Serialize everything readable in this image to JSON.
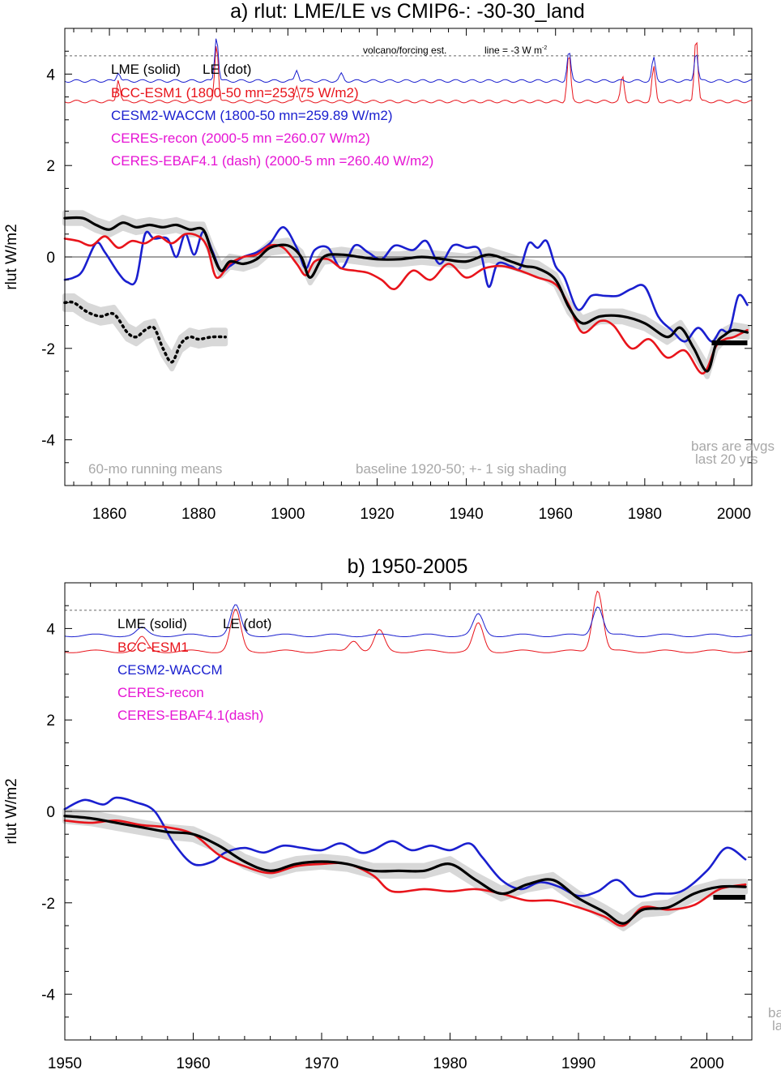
{
  "chart_data": [
    {
      "type": "line",
      "title": "a) rlut: LME/LE vs CMIP6-: -30-30_land",
      "ylabel": "rlut W/m2",
      "xlabel": "",
      "xlim": [
        1850,
        2004
      ],
      "ylim": [
        -5,
        5
      ],
      "xticks": [
        1860,
        1880,
        1900,
        1920,
        1940,
        1960,
        1980,
        2000
      ],
      "yticks": [
        -4,
        -2,
        0,
        2,
        4
      ],
      "grid": false,
      "legend_position": "top-left",
      "legend": [
        {
          "label": "LME (solid)",
          "color": "#000000"
        },
        {
          "label": "LE (dot)",
          "color": "#000000"
        },
        {
          "label": "BCC-ESM1 (1800-50 mn=253.75 W/m2)",
          "color": "#e8141b"
        },
        {
          "label": "CESM2-WACCM (1800-50 mn=259.89 W/m2)",
          "color": "#1a1fcf"
        },
        {
          "label": "CERES-recon (2000-5 mn =260.07 W/m2)",
          "color": "#e614d4"
        },
        {
          "label": "CERES-EBAF4.1 (dash) (2000-5 mn =260.40 W/m2)",
          "color": "#e614d4"
        }
      ],
      "annotations": {
        "volcano_label": "volcano/forcing est.",
        "line_label": "line = -3 W m",
        "line_label_sup": "-2",
        "running_means": "60-mo running means",
        "baseline": "baseline 1920-50; +- 1 sig shading",
        "bars_note_1": "bars are avgs",
        "bars_note_2": "last 20 yrs"
      },
      "reference_line_y": 4.4,
      "forcing_baseline": {
        "cesm2": 3.85,
        "bcc": 3.4
      },
      "volcano_peaks_cesm2": [
        [
          1862,
          4.05
        ],
        [
          1884,
          4.85
        ],
        [
          1902,
          4.1
        ],
        [
          1912,
          4.0
        ],
        [
          1963,
          4.5
        ],
        [
          1982,
          4.35
        ],
        [
          1991.5,
          4.5
        ]
      ],
      "volcano_peaks_bcc": [
        [
          1862,
          3.9
        ],
        [
          1884,
          4.7
        ],
        [
          1902,
          3.75
        ],
        [
          1963,
          4.45
        ],
        [
          1975,
          3.95
        ],
        [
          1982,
          4.15
        ],
        [
          1991.5,
          4.85
        ]
      ],
      "bar": {
        "x": [
          1995,
          2003
        ],
        "y": -1.88,
        "color": "#000000"
      },
      "series": [
        {
          "name": "LME (solid)",
          "color": "#000000",
          "style": "solid",
          "x": [
            1850,
            1854,
            1857,
            1860,
            1863,
            1866,
            1869,
            1872,
            1875,
            1878,
            1881,
            1883,
            1885,
            1887,
            1890,
            1893,
            1896,
            1900,
            1903,
            1905,
            1908,
            1912,
            1916,
            1920,
            1925,
            1930,
            1935,
            1940,
            1945,
            1950,
            1953,
            1956,
            1960,
            1963,
            1966,
            1970,
            1975,
            1980,
            1985,
            1988,
            1991,
            1994,
            1996,
            1998,
            2000,
            2003
          ],
          "y": [
            0.85,
            0.85,
            0.7,
            0.6,
            0.75,
            0.65,
            0.7,
            0.65,
            0.7,
            0.6,
            0.6,
            0.1,
            -0.3,
            -0.1,
            -0.15,
            -0.05,
            0.2,
            0.25,
            0.0,
            -0.45,
            0.0,
            0.05,
            0.0,
            -0.05,
            -0.05,
            0.0,
            -0.05,
            -0.1,
            0.05,
            -0.1,
            -0.2,
            -0.25,
            -0.5,
            -1.1,
            -1.45,
            -1.3,
            -1.3,
            -1.45,
            -1.75,
            -1.55,
            -2.0,
            -2.5,
            -1.9,
            -1.7,
            -1.6,
            -1.65
          ],
          "band": 0.12
        },
        {
          "name": "LE (dot)",
          "color": "#000000",
          "style": "dotted",
          "x": [
            1850,
            1852,
            1855,
            1858,
            1861,
            1864,
            1866,
            1868,
            1870,
            1872,
            1874,
            1876,
            1878,
            1880,
            1883,
            1886
          ],
          "y": [
            -1.0,
            -1.0,
            -1.2,
            -1.3,
            -1.25,
            -1.65,
            -1.75,
            -1.6,
            -1.55,
            -2.0,
            -2.3,
            -1.9,
            -1.75,
            -1.8,
            -1.75,
            -1.75
          ],
          "band": 0.15
        },
        {
          "name": "BCC-ESM1",
          "color": "#e8141b",
          "style": "solid",
          "x": [
            1850,
            1853,
            1856,
            1859,
            1862,
            1865,
            1868,
            1871,
            1874,
            1877,
            1880,
            1882,
            1884,
            1887,
            1890,
            1893,
            1896,
            1899,
            1902,
            1904,
            1906,
            1909,
            1912,
            1915,
            1918,
            1921,
            1924,
            1928,
            1932,
            1936,
            1940,
            1944,
            1948,
            1952,
            1956,
            1960,
            1963,
            1966,
            1970,
            1973,
            1977,
            1981,
            1985,
            1989,
            1993,
            1996,
            1998,
            2000,
            2003
          ],
          "y": [
            0.4,
            0.35,
            0.25,
            0.45,
            0.2,
            0.35,
            0.3,
            0.45,
            0.3,
            0.5,
            0.45,
            0.2,
            -0.45,
            -0.15,
            0.0,
            0.05,
            0.25,
            0.2,
            -0.15,
            -0.4,
            -0.1,
            -0.05,
            -0.25,
            -0.3,
            -0.35,
            -0.5,
            -0.7,
            -0.3,
            -0.5,
            -0.15,
            -0.45,
            -0.25,
            -0.2,
            -0.3,
            -0.45,
            -0.6,
            -1.05,
            -1.65,
            -1.4,
            -1.5,
            -2.0,
            -1.8,
            -2.2,
            -2.05,
            -2.55,
            -1.95,
            -1.8,
            -1.75,
            -1.6
          ]
        },
        {
          "name": "CESM2-WACCM",
          "color": "#1a1fcf",
          "style": "solid",
          "x": [
            1850,
            1852,
            1854,
            1857,
            1859,
            1862,
            1864,
            1866,
            1868,
            1870,
            1873,
            1875,
            1877,
            1879,
            1881,
            1883,
            1885,
            1887,
            1890,
            1893,
            1896,
            1899,
            1902,
            1904,
            1906,
            1909,
            1912,
            1915,
            1918,
            1921,
            1924,
            1928,
            1931,
            1934,
            1937,
            1940,
            1943,
            1945,
            1947,
            1950,
            1952,
            1954,
            1956,
            1958,
            1960,
            1962,
            1965,
            1968,
            1971,
            1974,
            1977,
            1980,
            1983,
            1986,
            1989,
            1992,
            1995,
            1997,
            1999,
            2001,
            2003
          ],
          "y": [
            -0.5,
            -0.45,
            -0.3,
            0.3,
            0.1,
            -0.35,
            -0.55,
            -0.5,
            0.5,
            0.4,
            0.4,
            0.0,
            0.5,
            0.05,
            0.55,
            0.15,
            -0.3,
            -0.2,
            0.0,
            0.1,
            0.3,
            0.65,
            0.2,
            -0.25,
            0.15,
            0.2,
            -0.25,
            0.25,
            0.1,
            -0.05,
            0.25,
            0.15,
            0.35,
            -0.15,
            0.25,
            0.2,
            0.15,
            -0.65,
            -0.15,
            -0.2,
            -0.25,
            0.3,
            0.2,
            0.35,
            -0.2,
            -0.45,
            -1.15,
            -0.85,
            -0.85,
            -0.85,
            -0.7,
            -0.65,
            -1.3,
            -1.6,
            -1.85,
            -1.55,
            -1.85,
            -1.6,
            -1.6,
            -0.85,
            -1.05
          ]
        }
      ]
    },
    {
      "type": "line",
      "title": "b) 1950-2005",
      "ylabel": "rlut W/m2",
      "xlabel": "",
      "xlim": [
        1950,
        2003.5
      ],
      "ylim": [
        -5,
        5
      ],
      "xticks": [
        1950,
        1960,
        1970,
        1980,
        1990,
        2000
      ],
      "yticks": [
        -4,
        -2,
        0,
        2,
        4
      ],
      "grid": false,
      "legend_position": "top-left",
      "legend": [
        {
          "label": "LME (solid)",
          "color": "#000000"
        },
        {
          "label": "LE (dot)",
          "color": "#000000"
        },
        {
          "label": "BCC-ESM1",
          "color": "#e8141b"
        },
        {
          "label": "CESM2-WACCM",
          "color": "#1a1fcf"
        },
        {
          "label": "CERES-recon",
          "color": "#e614d4"
        },
        {
          "label": "CERES-EBAF4.1(dash)",
          "color": "#e614d4"
        }
      ],
      "annotations": {
        "bars_note_1": "ba",
        "bars_note_2": "la"
      },
      "reference_line_y": 4.4,
      "forcing_baseline": {
        "cesm2": 3.85,
        "bcc": 3.5
      },
      "volcano_peaks_cesm2": [
        [
          1956,
          4.0
        ],
        [
          1963.3,
          4.5
        ],
        [
          1982.2,
          4.3
        ],
        [
          1991.5,
          4.5
        ]
      ],
      "volcano_peaks_bcc": [
        [
          1956,
          3.8
        ],
        [
          1963.3,
          4.4
        ],
        [
          1972.5,
          3.75
        ],
        [
          1974.5,
          3.95
        ],
        [
          1982.2,
          4.1
        ],
        [
          1991.5,
          4.85
        ]
      ],
      "bar": {
        "x": [
          2000.5,
          2003
        ],
        "y": -1.88,
        "color": "#000000"
      },
      "series": [
        {
          "name": "LME (solid)",
          "color": "#000000",
          "style": "solid",
          "x": [
            1950,
            1952,
            1954,
            1956,
            1958,
            1960,
            1962,
            1964,
            1966,
            1968,
            1970,
            1972,
            1974,
            1976,
            1978,
            1980,
            1982,
            1984,
            1986,
            1988,
            1990,
            1992,
            1993.5,
            1995,
            1997,
            1999,
            2001,
            2003
          ],
          "y": [
            -0.1,
            -0.15,
            -0.25,
            -0.35,
            -0.45,
            -0.5,
            -0.75,
            -1.1,
            -1.3,
            -1.15,
            -1.1,
            -1.15,
            -1.3,
            -1.3,
            -1.3,
            -1.15,
            -1.5,
            -1.8,
            -1.6,
            -1.5,
            -1.9,
            -2.2,
            -2.45,
            -2.15,
            -2.1,
            -1.8,
            -1.65,
            -1.65
          ],
          "band": 0.12
        },
        {
          "name": "BCC-ESM1",
          "color": "#e8141b",
          "style": "solid",
          "x": [
            1950,
            1952,
            1954,
            1956,
            1958,
            1960,
            1962,
            1964,
            1966,
            1968,
            1970,
            1972,
            1974,
            1975.5,
            1978,
            1980,
            1982,
            1984,
            1986,
            1988,
            1990,
            1992,
            1993.5,
            1995,
            1997,
            1999,
            2001,
            2003
          ],
          "y": [
            -0.2,
            -0.25,
            -0.2,
            -0.3,
            -0.35,
            -0.5,
            -0.95,
            -1.2,
            -1.35,
            -1.2,
            -1.15,
            -1.15,
            -1.4,
            -1.75,
            -1.7,
            -1.75,
            -1.7,
            -1.8,
            -1.95,
            -1.95,
            -2.1,
            -2.3,
            -2.5,
            -2.1,
            -2.15,
            -2.05,
            -1.7,
            -1.6
          ]
        },
        {
          "name": "CESM2-WACCM",
          "color": "#1a1fcf",
          "style": "solid",
          "x": [
            1950,
            1951.5,
            1953,
            1954,
            1955.5,
            1957,
            1958.5,
            1960,
            1961.5,
            1962.5,
            1964,
            1965.5,
            1967,
            1968.5,
            1970,
            1971.5,
            1973,
            1974,
            1975.5,
            1977,
            1978.5,
            1980,
            1981.5,
            1982.5,
            1984,
            1985.5,
            1987,
            1988.5,
            1990,
            1991.5,
            1993,
            1994.5,
            1996,
            1998,
            2000,
            2001.5,
            2003
          ],
          "y": [
            0.05,
            0.25,
            0.15,
            0.3,
            0.2,
            0.0,
            -0.7,
            -1.15,
            -1.1,
            -0.9,
            -0.8,
            -0.9,
            -0.75,
            -0.8,
            -0.85,
            -0.7,
            -0.9,
            -0.85,
            -0.65,
            -0.85,
            -0.75,
            -0.85,
            -0.7,
            -1.0,
            -1.5,
            -1.7,
            -1.55,
            -1.65,
            -1.85,
            -1.75,
            -1.5,
            -1.85,
            -1.8,
            -1.75,
            -1.3,
            -0.8,
            -1.05
          ]
        }
      ]
    }
  ]
}
